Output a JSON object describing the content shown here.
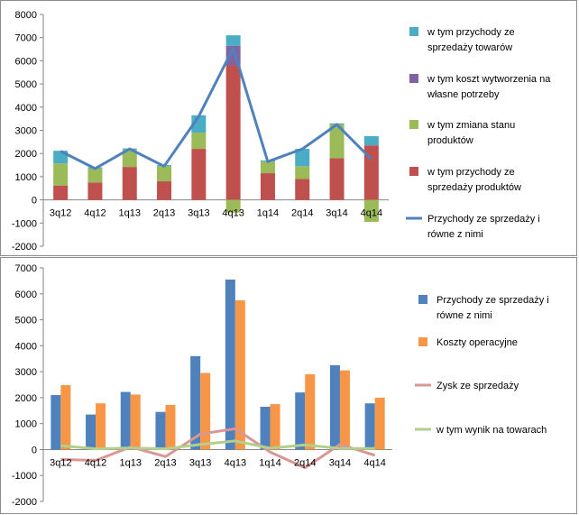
{
  "chart_data": [
    {
      "type": "bar",
      "stacked": true,
      "categories": [
        "3q12",
        "4q12",
        "1q13",
        "2q13",
        "3q13",
        "4q13",
        "1q14",
        "2q14",
        "3q14",
        "4q14"
      ],
      "ylim": [
        -2000,
        8000
      ],
      "yticks": [
        -2000,
        -1000,
        0,
        1000,
        2000,
        3000,
        4000,
        5000,
        6000,
        7000,
        8000
      ],
      "grid": false,
      "legend_position": "right",
      "series": [
        {
          "name": "w tym przychody ze sprzedaży produktów",
          "kind": "bar",
          "color": "#c0504d",
          "values": [
            620,
            750,
            1420,
            800,
            2200,
            5800,
            1150,
            900,
            1800,
            2350
          ]
        },
        {
          "name": "w tym zmiana stanu produktów",
          "kind": "bar",
          "color": "#9bbb59",
          "values": [
            950,
            600,
            750,
            650,
            700,
            -550,
            500,
            550,
            1450,
            -950
          ]
        },
        {
          "name": "w tym koszt wytworzenia na własne potrzeby",
          "kind": "bar",
          "color": "#8064a2",
          "values": [
            0,
            0,
            0,
            0,
            0,
            850,
            0,
            0,
            0,
            0
          ]
        },
        {
          "name": "w tym przychody ze sprzedaży towarów",
          "kind": "bar",
          "color": "#4bacc6",
          "values": [
            550,
            50,
            50,
            50,
            750,
            450,
            50,
            750,
            50,
            400
          ]
        },
        {
          "name": "Przychody ze sprzedaży i równe z nimi",
          "kind": "line",
          "color": "#4f81bd",
          "values": [
            2100,
            1350,
            2200,
            1450,
            3600,
            6550,
            1650,
            2200,
            3250,
            1750
          ]
        }
      ],
      "legend": [
        {
          "label": "w tym przychody ze sprzedaży towarów",
          "color": "#4bacc6",
          "kind": "box"
        },
        {
          "label": "w tym koszt wytworzenia na własne potrzeby",
          "color": "#8064a2",
          "kind": "box"
        },
        {
          "label": "w tym zmiana stanu produktów",
          "color": "#9bbb59",
          "kind": "box"
        },
        {
          "label": "w tym przychody ze sprzedaży produktów",
          "color": "#c0504d",
          "kind": "box"
        },
        {
          "label": "Przychody ze sprzedaży i równe z nimi",
          "color": "#4f81bd",
          "kind": "line"
        }
      ]
    },
    {
      "type": "bar",
      "categories": [
        "3q12",
        "4q12",
        "1q13",
        "2q13",
        "3q13",
        "4q13",
        "1q14",
        "2q14",
        "3q14",
        "4q14"
      ],
      "ylim": [
        -2000,
        7000
      ],
      "yticks": [
        -2000,
        -1000,
        0,
        1000,
        2000,
        3000,
        4000,
        5000,
        6000,
        7000
      ],
      "grid": false,
      "legend_position": "right",
      "series": [
        {
          "name": "Przychody ze sprzedaży i równe z nimi",
          "kind": "bar",
          "color": "#4f81bd",
          "values": [
            2100,
            1350,
            2220,
            1450,
            3600,
            6550,
            1650,
            2200,
            3250,
            1780
          ]
        },
        {
          "name": "Koszty operacyjne",
          "kind": "bar",
          "color": "#f79646",
          "values": [
            2480,
            1780,
            2120,
            1720,
            2950,
            5750,
            1750,
            2900,
            3050,
            2000
          ]
        },
        {
          "name": "Zysk ze sprzedaży",
          "kind": "line",
          "color": "#d99694",
          "values": [
            -380,
            -420,
            100,
            -270,
            600,
            800,
            -100,
            -700,
            200,
            -220
          ]
        },
        {
          "name": "w tym wynik na towarach",
          "kind": "line",
          "color": "#b3cf8c",
          "values": [
            150,
            30,
            60,
            30,
            200,
            330,
            50,
            180,
            40,
            40
          ]
        }
      ],
      "legend": [
        {
          "label": "Przychody ze sprzedaży i równe z nimi",
          "color": "#4f81bd",
          "kind": "box"
        },
        {
          "label": "Koszty operacyjne",
          "color": "#f79646",
          "kind": "box"
        },
        {
          "label": "Zysk ze sprzedaży",
          "color": "#d99694",
          "kind": "line"
        },
        {
          "label": "w tym wynik na towarach",
          "color": "#b3cf8c",
          "kind": "line"
        }
      ]
    }
  ]
}
